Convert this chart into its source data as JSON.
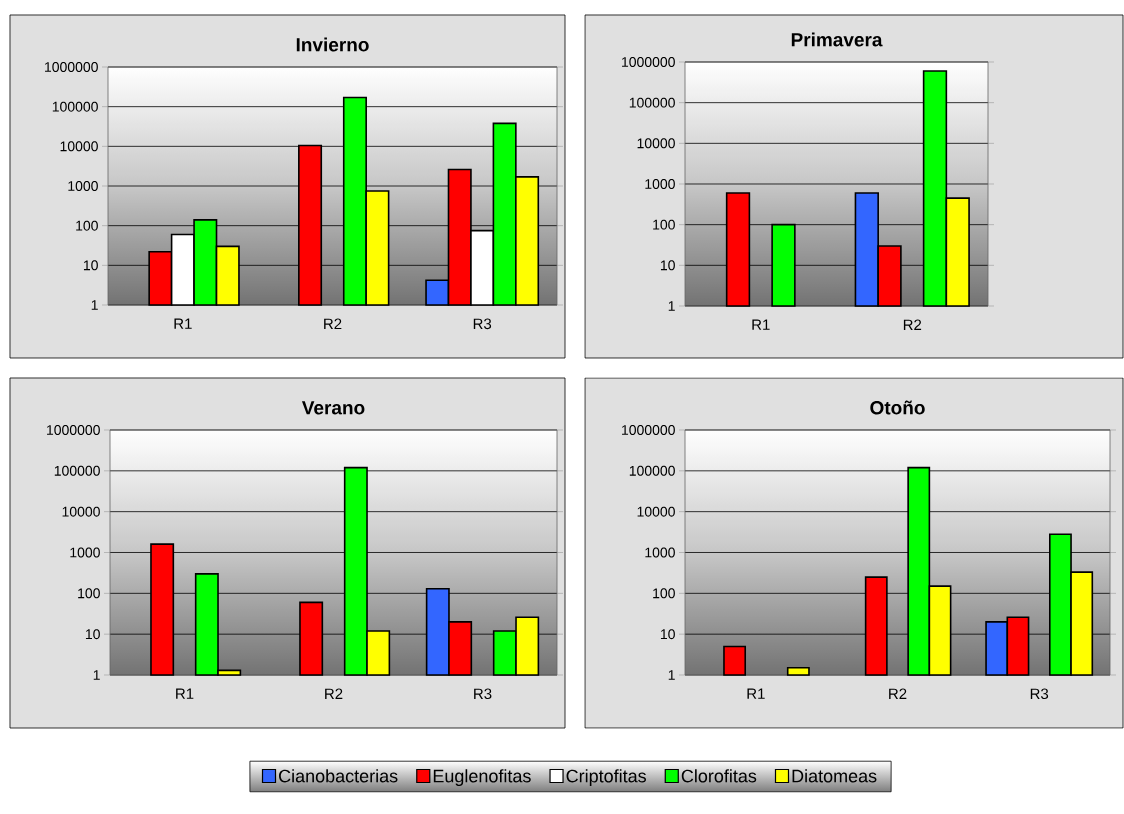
{
  "chart_data": [
    {
      "type": "bar",
      "title": "Invierno",
      "categories": [
        "R1",
        "R2",
        "R3"
      ],
      "log": true,
      "ylim": [
        1,
        1000000
      ],
      "yticks": [
        1,
        10,
        100,
        1000,
        10000,
        100000,
        1000000
      ],
      "grid": "y",
      "legend": "bottom",
      "series": [
        {
          "name": "Cianobacterias",
          "color": "#3366ff",
          "values": [
            null,
            null,
            4.2
          ]
        },
        {
          "name": "Euglenofitas",
          "color": "#ff0000",
          "values": [
            22,
            10500,
            2600
          ]
        },
        {
          "name": "Criptofitas",
          "color": "#ffffff",
          "values": [
            60,
            null,
            75
          ]
        },
        {
          "name": "Clorofitas",
          "color": "#00ff00",
          "values": [
            140,
            170000,
            38000
          ]
        },
        {
          "name": "Diatomeas",
          "color": "#ffff00",
          "values": [
            30,
            750,
            1700
          ]
        }
      ]
    },
    {
      "type": "bar",
      "title": "Primavera",
      "categories": [
        "R1",
        "R2"
      ],
      "log": true,
      "ylim": [
        1,
        1000000
      ],
      "yticks": [
        1,
        10,
        100,
        1000,
        10000,
        100000,
        1000000
      ],
      "grid": "y",
      "series": [
        {
          "color": "#3366ff",
          "values": [
            null,
            600
          ]
        },
        {
          "color": "#ff0000",
          "values": [
            600,
            30
          ]
        },
        {
          "color": "#ffffff",
          "values": [
            null,
            null
          ]
        },
        {
          "color": "#00ff00",
          "values": [
            100,
            600000
          ]
        },
        {
          "color": "#ffff00",
          "values": [
            null,
            450
          ]
        }
      ]
    },
    {
      "type": "bar",
      "title": "Verano",
      "categories": [
        "R1",
        "R2",
        "R3"
      ],
      "log": true,
      "ylim": [
        1,
        1000000
      ],
      "yticks": [
        1,
        10,
        100,
        1000,
        10000,
        100000,
        1000000
      ],
      "grid": "y",
      "series": [
        {
          "color": "#3366ff",
          "values": [
            null,
            null,
            130
          ]
        },
        {
          "color": "#ff0000",
          "values": [
            1600,
            60,
            20
          ]
        },
        {
          "color": "#ffffff",
          "values": [
            null,
            null,
            null
          ]
        },
        {
          "color": "#00ff00",
          "values": [
            300,
            120000,
            12
          ]
        },
        {
          "color": "#ffff00",
          "values": [
            1.3,
            12,
            26
          ]
        }
      ]
    },
    {
      "type": "bar",
      "title": "Otoño",
      "categories": [
        "R1",
        "R2",
        "R3"
      ],
      "log": true,
      "ylim": [
        1,
        1000000
      ],
      "yticks": [
        1,
        10,
        100,
        1000,
        10000,
        100000,
        1000000
      ],
      "grid": "y",
      "series": [
        {
          "color": "#3366ff",
          "values": [
            null,
            null,
            20
          ]
        },
        {
          "color": "#ff0000",
          "values": [
            5,
            250,
            26
          ]
        },
        {
          "color": "#ffffff",
          "values": [
            null,
            null,
            null
          ]
        },
        {
          "color": "#00ff00",
          "values": [
            null,
            120000,
            2800
          ]
        },
        {
          "color": "#ffff00",
          "values": [
            1.5,
            150,
            330
          ]
        }
      ]
    }
  ]
}
